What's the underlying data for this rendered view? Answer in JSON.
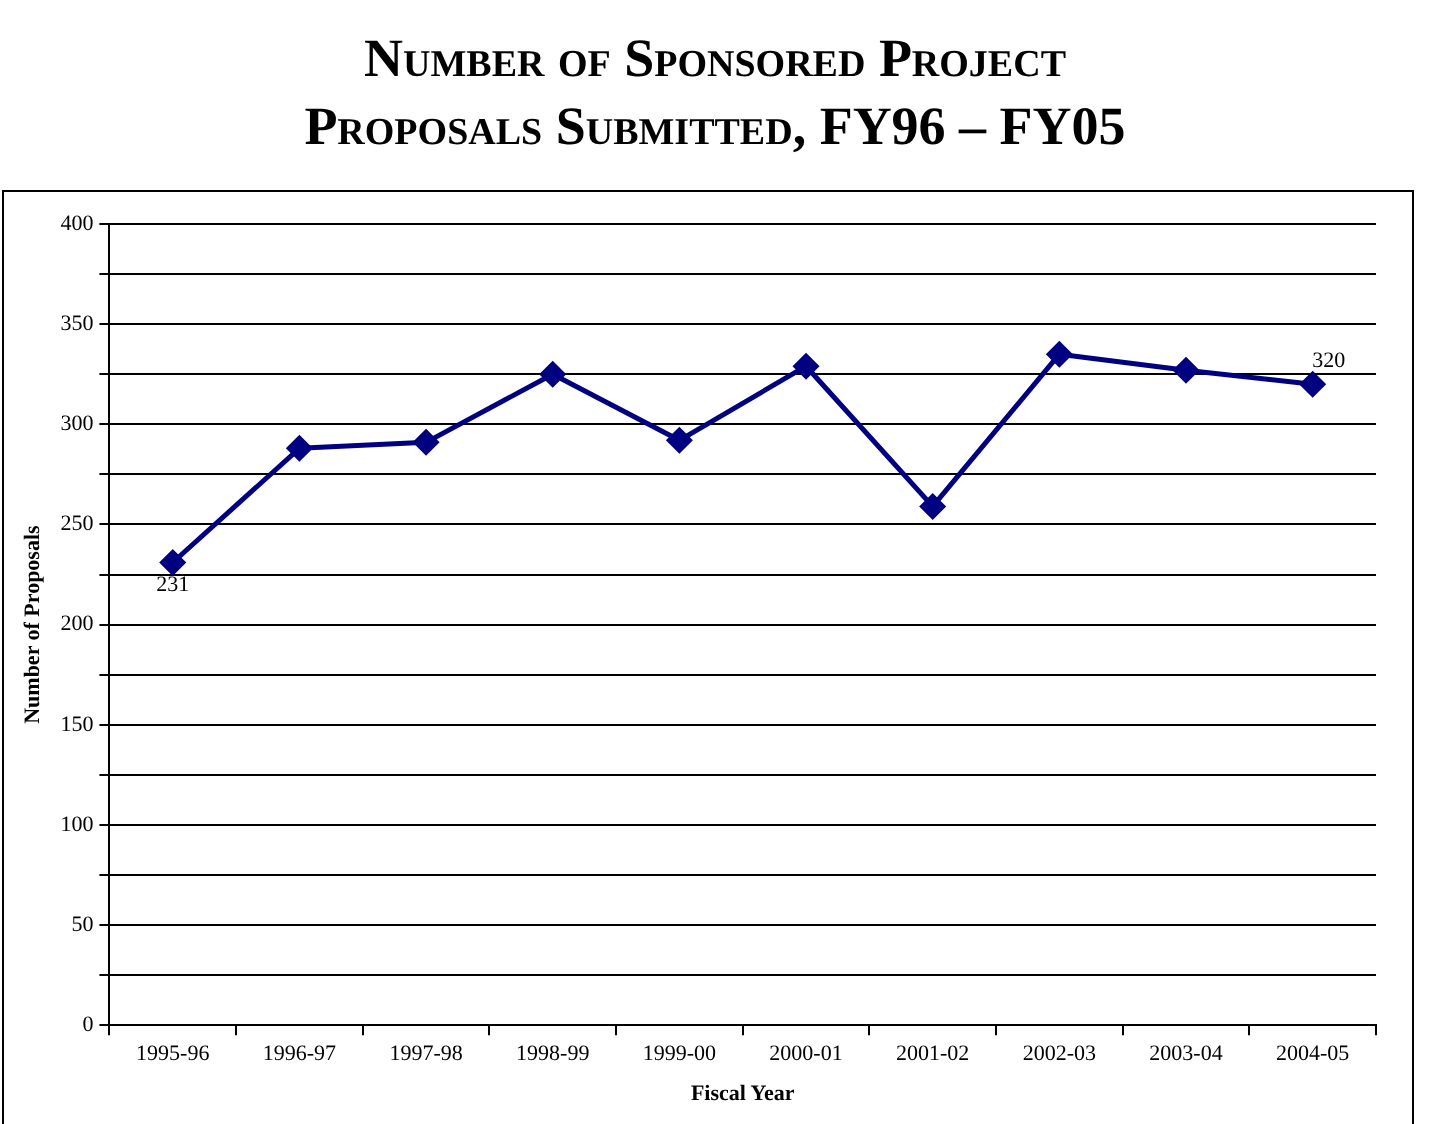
{
  "chart_data": {
    "type": "line",
    "title": "Number of Sponsored Project Proposals Submitted, FY96 – FY05",
    "xlabel": "Fiscal Year",
    "ylabel": "Number of Proposals",
    "categories": [
      "1995-96",
      "1996-97",
      "1997-98",
      "1998-99",
      "1999-00",
      "2000-01",
      "2001-02",
      "2002-03",
      "2003-04",
      "2004-05"
    ],
    "series": [
      {
        "color": "#000080",
        "values": [
          231,
          288,
          291,
          325,
          292,
          329,
          259,
          335,
          327,
          320
        ],
        "value_labels": [
          "231",
          null,
          null,
          null,
          null,
          null,
          null,
          null,
          null,
          "320"
        ]
      }
    ],
    "ylim": [
      0,
      400
    ],
    "yticks": [
      0,
      {
        "value": 25,
        "label": null
      },
      50,
      {
        "value": 75,
        "label": null
      },
      100,
      {
        "value": 125,
        "label": null
      },
      150,
      {
        "value": 175,
        "label": null
      },
      200,
      {
        "value": 225,
        "label": null
      },
      250,
      {
        "value": 275,
        "label": null
      },
      300,
      {
        "value": 325,
        "label": null
      },
      350,
      {
        "value": 375,
        "label": null
      },
      400
    ],
    "grid": "y",
    "marker": "diamond",
    "line_style": "solid",
    "legend": false
  }
}
